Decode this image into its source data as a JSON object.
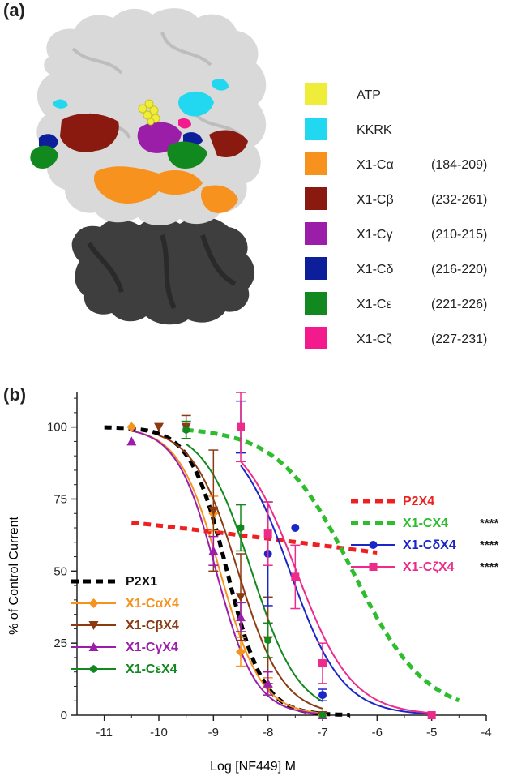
{
  "panel_a": {
    "label": "(a)",
    "legend": [
      {
        "name": "ATP",
        "range": "",
        "color": "#f0ec3a"
      },
      {
        "name": "KKRK",
        "range": "",
        "color": "#22d8f0"
      },
      {
        "name": "X1-Cα",
        "range": "(184-209)",
        "color": "#f7921e"
      },
      {
        "name": "X1-Cβ",
        "range": "(232-261)",
        "color": "#8a1a10"
      },
      {
        "name": "X1-Cγ",
        "range": "(210-215)",
        "color": "#9a1ea8"
      },
      {
        "name": "X1-Cδ",
        "range": "(216-220)",
        "color": "#0c1e9a"
      },
      {
        "name": "X1-Cε",
        "range": "(221-226)",
        "color": "#12891e"
      },
      {
        "name": "X1-Cζ",
        "range": "(227-231)",
        "color": "#f21a8c"
      }
    ]
  },
  "panel_b": {
    "label": "(b)",
    "significance_marker": "****"
  },
  "chart_data": {
    "type": "line",
    "title": "",
    "xlabel": "Log [NF449] M",
    "ylabel": "% of Control Current",
    "xlim": [
      -11.5,
      -4
    ],
    "ylim": [
      0,
      112
    ],
    "xticks": [
      -11,
      -10,
      -9,
      -8,
      -7,
      -6,
      -5,
      -4
    ],
    "yticks": [
      0,
      25,
      50,
      75,
      100
    ],
    "legend_placement": "bottom-left and right",
    "series": [
      {
        "name": "P2X1",
        "color": "#000000",
        "dashed": true,
        "marker": "none",
        "fit": {
          "top": 100,
          "ic50": -8.75,
          "hill": 1.3,
          "xmin": -11,
          "xmax": -6.5
        },
        "points": [],
        "sig": false
      },
      {
        "name": "X1-CαX4",
        "color": "#f7921e",
        "dashed": false,
        "marker": "diamond",
        "fit": {
          "top": 100,
          "ic50": -8.88,
          "hill": 1.15,
          "xmin": -10.5,
          "xmax": -7
        },
        "points": [
          {
            "x": -10.5,
            "y": 100,
            "err": 0
          },
          {
            "x": -9,
            "y": 70,
            "err": 6
          },
          {
            "x": -8.5,
            "y": 22,
            "err": 5
          },
          {
            "x": -8,
            "y": 10,
            "err": 3
          },
          {
            "x": -7,
            "y": 0,
            "err": 0
          }
        ],
        "sig": false
      },
      {
        "name": "X1-CβX4",
        "color": "#8b3a12",
        "dashed": false,
        "marker": "triangle-down",
        "fit": {
          "top": 100,
          "ic50": -8.55,
          "hill": 1.05,
          "xmin": -10,
          "xmax": -7
        },
        "points": [
          {
            "x": -10,
            "y": 100,
            "err": 0
          },
          {
            "x": -9.5,
            "y": 100,
            "err": 4
          },
          {
            "x": -9,
            "y": 71,
            "err": 21
          },
          {
            "x": -8.5,
            "y": 41,
            "err": 15
          },
          {
            "x": -8,
            "y": 26,
            "err": 15
          },
          {
            "x": -7,
            "y": 0,
            "err": 0
          }
        ],
        "sig": false
      },
      {
        "name": "X1-CγX4",
        "color": "#9a1ea8",
        "dashed": false,
        "marker": "triangle-up",
        "fit": {
          "top": 100,
          "ic50": -8.95,
          "hill": 1.2,
          "xmin": -10.5,
          "xmax": -7
        },
        "points": [
          {
            "x": -10.5,
            "y": 95,
            "err": 0
          },
          {
            "x": -9,
            "y": 57,
            "err": 5
          },
          {
            "x": -8.5,
            "y": 34,
            "err": 5
          },
          {
            "x": -8,
            "y": 11,
            "err": 4
          },
          {
            "x": -7,
            "y": 0,
            "err": 0
          }
        ],
        "sig": false
      },
      {
        "name": "X1-CεX4",
        "color": "#12891e",
        "dashed": false,
        "marker": "hexagon",
        "fit": {
          "top": 100,
          "ic50": -8.3,
          "hill": 1.0,
          "xmin": -9.5,
          "xmax": -7
        },
        "points": [
          {
            "x": -9.5,
            "y": 99,
            "err": 3
          },
          {
            "x": -8.5,
            "y": 65,
            "err": 8
          },
          {
            "x": -8,
            "y": 26,
            "err": 6
          },
          {
            "x": -7,
            "y": 0,
            "err": 0
          }
        ],
        "sig": false
      },
      {
        "name": "P2X4",
        "color": "#ee2020",
        "dashed": true,
        "marker": "none",
        "fit": {
          "top": 92,
          "ic50": -2,
          "hill": 0.05,
          "xmin": -10.5,
          "xmax": -6
        },
        "points": [],
        "sig": false
      },
      {
        "name": "X1-CX4",
        "color": "#2ebd2e",
        "dashed": true,
        "marker": "none",
        "fit": {
          "top": 100,
          "ic50": -6.45,
          "hill": 0.65,
          "xmin": -9.5,
          "xmax": -4.5
        },
        "points": [],
        "sig": true
      },
      {
        "name": "X1-CδX4",
        "color": "#1a26c8",
        "dashed": false,
        "marker": "circle",
        "fit": {
          "top": 100,
          "ic50": -7.6,
          "hill": 0.9,
          "xmin": -8.5,
          "xmax": -5
        },
        "points": [
          {
            "x": -8.5,
            "y": 100,
            "err": 9
          },
          {
            "x": -8,
            "y": 56,
            "err": 18
          },
          {
            "x": -7.5,
            "y": 65,
            "err": 0
          },
          {
            "x": -7,
            "y": 7,
            "err": 2
          },
          {
            "x": -5,
            "y": 0,
            "err": 0
          }
        ],
        "sig": true
      },
      {
        "name": "X1-CζX4",
        "color": "#ee2a8a",
        "dashed": false,
        "marker": "square",
        "fit": {
          "top": 100,
          "ic50": -7.48,
          "hill": 0.85,
          "xmin": -8.5,
          "xmax": -5
        },
        "points": [
          {
            "x": -8.5,
            "y": 100,
            "err": 12
          },
          {
            "x": -8,
            "y": 63,
            "err": 11
          },
          {
            "x": -7.5,
            "y": 48,
            "err": 11
          },
          {
            "x": -7,
            "y": 18,
            "err": 7
          },
          {
            "x": -5,
            "y": 0,
            "err": 0
          }
        ],
        "sig": true
      }
    ]
  }
}
